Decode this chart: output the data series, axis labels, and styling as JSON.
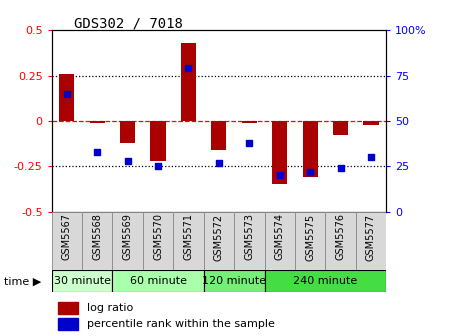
{
  "title": "GDS302 / 7018",
  "samples": [
    "GSM5567",
    "GSM5568",
    "GSM5569",
    "GSM5570",
    "GSM5571",
    "GSM5572",
    "GSM5573",
    "GSM5574",
    "GSM5575",
    "GSM5576",
    "GSM5577"
  ],
  "log_ratio": [
    0.26,
    -0.01,
    -0.12,
    -0.22,
    0.43,
    -0.16,
    -0.01,
    -0.35,
    -0.31,
    -0.08,
    -0.02
  ],
  "percentile_rank": [
    65,
    33,
    28,
    25,
    79,
    27,
    38,
    20,
    22,
    24,
    30
  ],
  "time_groups": [
    {
      "label": "30 minute",
      "start": 0,
      "end": 2,
      "color": "#ccffcc"
    },
    {
      "label": "60 minute",
      "start": 2,
      "end": 5,
      "color": "#aaffaa"
    },
    {
      "label": "120 minute",
      "start": 5,
      "end": 7,
      "color": "#77ee77"
    },
    {
      "label": "240 minute",
      "start": 7,
      "end": 11,
      "color": "#44dd44"
    }
  ],
  "bar_color": "#aa0000",
  "dot_color": "#0000cc",
  "ylim": [
    -0.5,
    0.5
  ],
  "y2lim": [
    0,
    100
  ],
  "yticks": [
    -0.5,
    -0.25,
    0,
    0.25,
    0.5
  ],
  "y2ticks": [
    0,
    25,
    50,
    75,
    100
  ],
  "hlines_dotted": [
    0.25,
    -0.25
  ],
  "hline_red_dashed": 0,
  "label_bg": "#d8d8d8",
  "label_border": "#888888"
}
